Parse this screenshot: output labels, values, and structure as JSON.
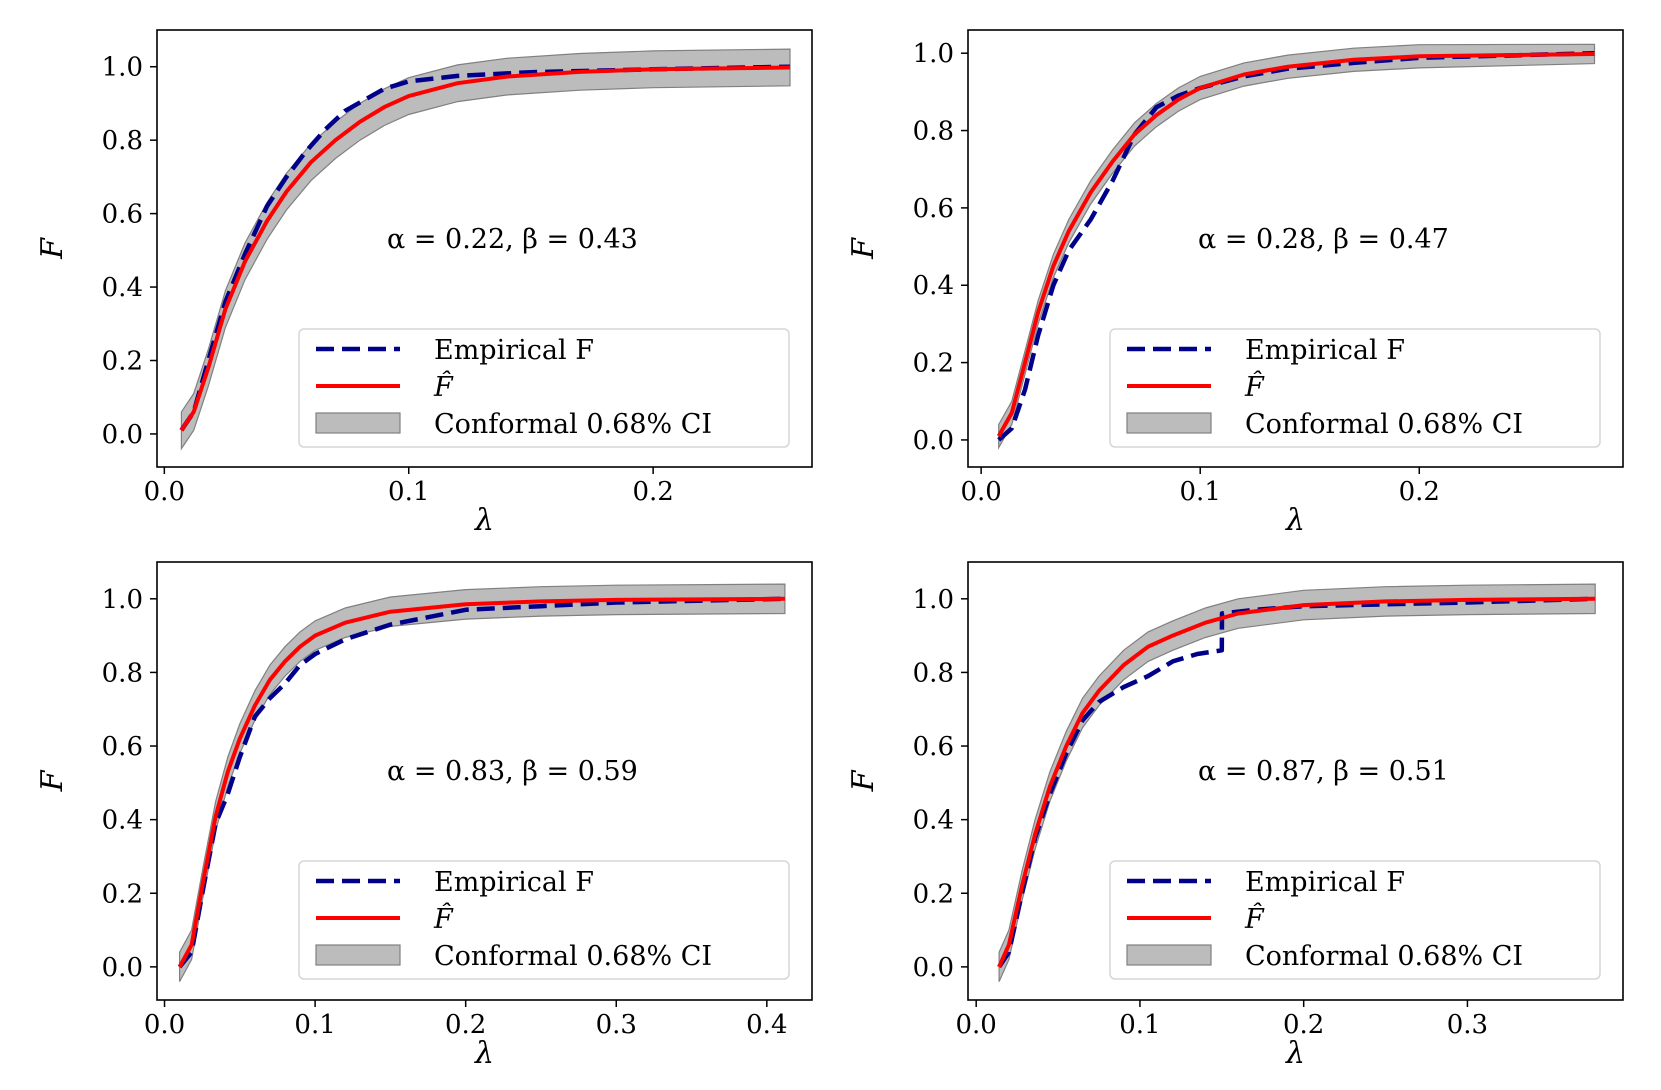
{
  "chart_data": [
    {
      "type": "line",
      "xlabel": "λ",
      "ylabel": "F",
      "xlim": [
        -0.003,
        0.265
      ],
      "ylim": [
        -0.09,
        1.1
      ],
      "xticks": [
        0.0,
        0.1,
        0.2
      ],
      "xtick_labels": [
        "0.0",
        "0.1",
        "0.2"
      ],
      "yticks": [
        0.0,
        0.2,
        0.4,
        0.6,
        0.8,
        1.0
      ],
      "ytick_labels": [
        "0.0",
        "0.2",
        "0.4",
        "0.6",
        "0.8",
        "1.0"
      ],
      "annotation": "α = 0.22, β = 0.43",
      "legend": {
        "position": "lower-right",
        "entries": [
          "Empirical F",
          "F̂",
          "Conformal 0.68% CI"
        ]
      },
      "series": [
        {
          "name": "Empirical F",
          "style": "dashed",
          "color": "#00008b",
          "x": [
            0.007,
            0.012,
            0.018,
            0.025,
            0.033,
            0.042,
            0.05,
            0.058,
            0.066,
            0.074,
            0.082,
            0.09,
            0.1,
            0.12,
            0.15,
            0.2,
            0.256
          ],
          "y": [
            0.01,
            0.06,
            0.2,
            0.36,
            0.49,
            0.62,
            0.7,
            0.77,
            0.83,
            0.88,
            0.91,
            0.94,
            0.96,
            0.975,
            0.985,
            0.993,
            1.0
          ]
        },
        {
          "name": "F̂",
          "style": "solid",
          "color": "#ff0000",
          "x": [
            0.007,
            0.012,
            0.018,
            0.025,
            0.033,
            0.042,
            0.05,
            0.06,
            0.07,
            0.08,
            0.09,
            0.1,
            0.12,
            0.14,
            0.17,
            0.2,
            0.256
          ],
          "y": [
            0.01,
            0.06,
            0.18,
            0.34,
            0.47,
            0.58,
            0.66,
            0.74,
            0.8,
            0.85,
            0.89,
            0.92,
            0.955,
            0.973,
            0.986,
            0.993,
            0.998
          ]
        },
        {
          "name": "Conformal 0.68% CI",
          "style": "band",
          "color": "#a0a0a0",
          "x": [
            0.007,
            0.012,
            0.018,
            0.025,
            0.033,
            0.042,
            0.05,
            0.06,
            0.07,
            0.08,
            0.09,
            0.1,
            0.12,
            0.14,
            0.17,
            0.2,
            0.256
          ],
          "y_lower": [
            -0.04,
            0.01,
            0.13,
            0.29,
            0.42,
            0.53,
            0.61,
            0.69,
            0.75,
            0.8,
            0.84,
            0.87,
            0.905,
            0.923,
            0.936,
            0.943,
            0.948
          ],
          "y_upper": [
            0.06,
            0.11,
            0.23,
            0.39,
            0.52,
            0.63,
            0.71,
            0.79,
            0.85,
            0.9,
            0.94,
            0.97,
            1.005,
            1.023,
            1.036,
            1.043,
            1.048
          ]
        }
      ]
    },
    {
      "type": "line",
      "xlabel": "λ",
      "ylabel": "F",
      "xlim": [
        -0.006,
        0.293
      ],
      "ylim": [
        -0.07,
        1.06
      ],
      "xticks": [
        0.0,
        0.1,
        0.2
      ],
      "xtick_labels": [
        "0.0",
        "0.1",
        "0.2"
      ],
      "yticks": [
        0.0,
        0.2,
        0.4,
        0.6,
        0.8,
        1.0
      ],
      "ytick_labels": [
        "0.0",
        "0.2",
        "0.4",
        "0.6",
        "0.8",
        "1.0"
      ],
      "annotation": "α = 0.28, β = 0.47",
      "legend": {
        "position": "lower-right",
        "entries": [
          "Empirical F",
          "F̂",
          "Conformal 0.68% CI"
        ]
      },
      "series": [
        {
          "name": "Empirical F",
          "style": "dashed",
          "color": "#00008b",
          "x": [
            0.008,
            0.014,
            0.02,
            0.026,
            0.033,
            0.04,
            0.05,
            0.06,
            0.07,
            0.08,
            0.09,
            0.1,
            0.12,
            0.14,
            0.17,
            0.2,
            0.28
          ],
          "y": [
            0.0,
            0.03,
            0.13,
            0.27,
            0.4,
            0.49,
            0.57,
            0.67,
            0.79,
            0.86,
            0.89,
            0.91,
            0.94,
            0.96,
            0.975,
            0.988,
            1.0
          ]
        },
        {
          "name": "F̂",
          "style": "solid",
          "color": "#ff0000",
          "x": [
            0.008,
            0.014,
            0.02,
            0.026,
            0.033,
            0.04,
            0.05,
            0.06,
            0.07,
            0.08,
            0.09,
            0.1,
            0.12,
            0.14,
            0.17,
            0.2,
            0.28
          ],
          "y": [
            0.01,
            0.07,
            0.2,
            0.33,
            0.45,
            0.54,
            0.64,
            0.72,
            0.79,
            0.84,
            0.88,
            0.91,
            0.945,
            0.965,
            0.983,
            0.992,
            0.998
          ]
        },
        {
          "name": "Conformal 0.68% CI",
          "style": "band",
          "color": "#a0a0a0",
          "x": [
            0.008,
            0.014,
            0.02,
            0.026,
            0.033,
            0.04,
            0.05,
            0.06,
            0.07,
            0.08,
            0.09,
            0.1,
            0.12,
            0.14,
            0.17,
            0.2,
            0.28
          ],
          "y_lower": [
            -0.02,
            0.04,
            0.17,
            0.3,
            0.42,
            0.51,
            0.61,
            0.69,
            0.76,
            0.81,
            0.85,
            0.88,
            0.915,
            0.935,
            0.953,
            0.962,
            0.973
          ],
          "y_upper": [
            0.04,
            0.1,
            0.23,
            0.36,
            0.48,
            0.57,
            0.67,
            0.75,
            0.82,
            0.87,
            0.91,
            0.94,
            0.975,
            0.995,
            1.013,
            1.022,
            1.023
          ]
        }
      ]
    },
    {
      "type": "line",
      "xlabel": "λ",
      "ylabel": "F",
      "xlim": [
        -0.005,
        0.43
      ],
      "ylim": [
        -0.09,
        1.1
      ],
      "xticks": [
        0.0,
        0.1,
        0.2,
        0.3,
        0.4
      ],
      "xtick_labels": [
        "0.0",
        "0.1",
        "0.2",
        "0.3",
        "0.4"
      ],
      "yticks": [
        0.0,
        0.2,
        0.4,
        0.6,
        0.8,
        1.0
      ],
      "ytick_labels": [
        "0.0",
        "0.2",
        "0.4",
        "0.6",
        "0.8",
        "1.0"
      ],
      "annotation": "α = 0.83, β = 0.59",
      "legend": {
        "position": "lower-right",
        "entries": [
          "Empirical F",
          "F̂",
          "Conformal 0.68% CI"
        ]
      },
      "series": [
        {
          "name": "Empirical F",
          "style": "dashed",
          "color": "#00008b",
          "x": [
            0.01,
            0.018,
            0.026,
            0.034,
            0.042,
            0.05,
            0.06,
            0.07,
            0.08,
            0.09,
            0.1,
            0.12,
            0.15,
            0.2,
            0.25,
            0.3,
            0.412
          ],
          "y": [
            0.0,
            0.04,
            0.22,
            0.39,
            0.47,
            0.57,
            0.68,
            0.73,
            0.77,
            0.82,
            0.85,
            0.89,
            0.93,
            0.97,
            0.98,
            0.99,
            1.0
          ]
        },
        {
          "name": "F̂",
          "style": "solid",
          "color": "#ff0000",
          "x": [
            0.01,
            0.018,
            0.026,
            0.034,
            0.042,
            0.05,
            0.06,
            0.07,
            0.08,
            0.09,
            0.1,
            0.12,
            0.15,
            0.2,
            0.25,
            0.3,
            0.412
          ],
          "y": [
            0.0,
            0.06,
            0.24,
            0.41,
            0.53,
            0.62,
            0.71,
            0.78,
            0.83,
            0.87,
            0.9,
            0.935,
            0.965,
            0.985,
            0.993,
            0.997,
            1.0
          ]
        },
        {
          "name": "Conformal 0.68% CI",
          "style": "band",
          "color": "#a0a0a0",
          "x": [
            0.01,
            0.018,
            0.026,
            0.034,
            0.042,
            0.05,
            0.06,
            0.07,
            0.08,
            0.09,
            0.1,
            0.12,
            0.15,
            0.2,
            0.25,
            0.3,
            0.412
          ],
          "y_lower": [
            -0.04,
            0.02,
            0.2,
            0.37,
            0.49,
            0.58,
            0.67,
            0.74,
            0.79,
            0.83,
            0.86,
            0.895,
            0.925,
            0.945,
            0.953,
            0.957,
            0.96
          ],
          "y_upper": [
            0.04,
            0.1,
            0.28,
            0.45,
            0.57,
            0.66,
            0.75,
            0.82,
            0.87,
            0.91,
            0.94,
            0.975,
            1.005,
            1.025,
            1.033,
            1.037,
            1.04
          ]
        }
      ]
    },
    {
      "type": "line",
      "xlabel": "λ",
      "ylabel": "F",
      "xlim": [
        -0.005,
        0.395
      ],
      "ylim": [
        -0.09,
        1.1
      ],
      "xticks": [
        0.0,
        0.1,
        0.2,
        0.3
      ],
      "xtick_labels": [
        "0.0",
        "0.1",
        "0.2",
        "0.3"
      ],
      "yticks": [
        0.0,
        0.2,
        0.4,
        0.6,
        0.8,
        1.0
      ],
      "ytick_labels": [
        "0.0",
        "0.2",
        "0.4",
        "0.6",
        "0.8",
        "1.0"
      ],
      "annotation": "α = 0.87, β = 0.51",
      "legend": {
        "position": "lower-right",
        "entries": [
          "Empirical F",
          "F̂",
          "Conformal 0.68% CI"
        ]
      },
      "series": [
        {
          "name": "Empirical F",
          "style": "dashed",
          "color": "#00008b",
          "x": [
            0.014,
            0.02,
            0.028,
            0.036,
            0.045,
            0.055,
            0.065,
            0.075,
            0.09,
            0.105,
            0.12,
            0.135,
            0.15,
            0.1501,
            0.17,
            0.2,
            0.25,
            0.3,
            0.378
          ],
          "y": [
            0.0,
            0.04,
            0.2,
            0.35,
            0.47,
            0.58,
            0.67,
            0.72,
            0.76,
            0.79,
            0.83,
            0.85,
            0.86,
            0.96,
            0.97,
            0.98,
            0.985,
            0.99,
            1.0
          ]
        },
        {
          "name": "F̂",
          "style": "solid",
          "color": "#ff0000",
          "x": [
            0.014,
            0.02,
            0.028,
            0.036,
            0.045,
            0.055,
            0.065,
            0.075,
            0.09,
            0.105,
            0.12,
            0.14,
            0.16,
            0.2,
            0.25,
            0.3,
            0.378
          ],
          "y": [
            0.0,
            0.06,
            0.22,
            0.36,
            0.49,
            0.6,
            0.69,
            0.75,
            0.82,
            0.87,
            0.9,
            0.935,
            0.96,
            0.983,
            0.993,
            0.997,
            1.0
          ]
        },
        {
          "name": "Conformal 0.68% CI",
          "style": "band",
          "color": "#a0a0a0",
          "x": [
            0.014,
            0.02,
            0.028,
            0.036,
            0.045,
            0.055,
            0.065,
            0.075,
            0.09,
            0.105,
            0.12,
            0.14,
            0.16,
            0.2,
            0.25,
            0.3,
            0.378
          ],
          "y_lower": [
            -0.04,
            0.02,
            0.18,
            0.32,
            0.45,
            0.56,
            0.65,
            0.71,
            0.78,
            0.83,
            0.86,
            0.895,
            0.92,
            0.943,
            0.953,
            0.957,
            0.96
          ],
          "y_upper": [
            0.04,
            0.1,
            0.26,
            0.4,
            0.53,
            0.64,
            0.73,
            0.79,
            0.86,
            0.91,
            0.94,
            0.975,
            1.0,
            1.023,
            1.033,
            1.037,
            1.04
          ]
        }
      ]
    }
  ]
}
